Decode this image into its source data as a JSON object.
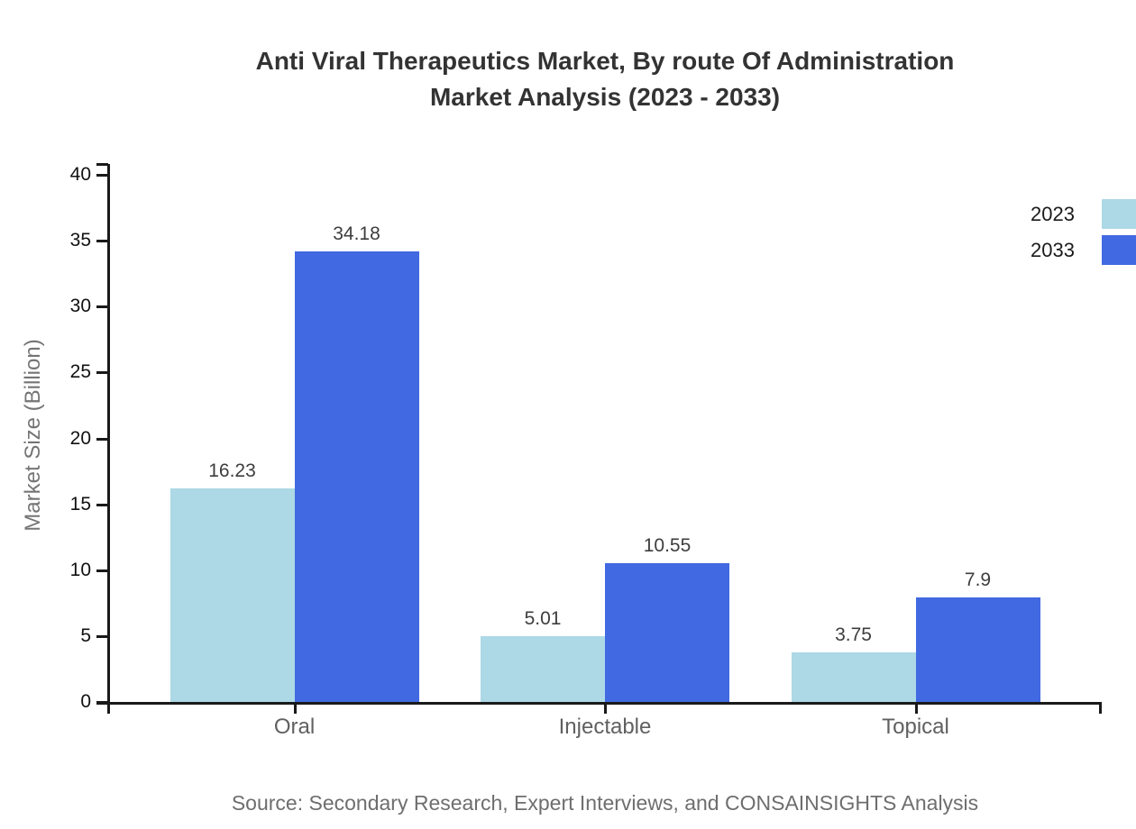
{
  "chart_data": {
    "type": "bar",
    "title": "Anti Viral Therapeutics Market, By route Of Administration\nMarket Analysis (2023 - 2033)",
    "categories": [
      "Oral",
      "Injectable",
      "Topical"
    ],
    "series": [
      {
        "name": "2023",
        "color": "#ADD8E6",
        "values": [
          16.23,
          5.01,
          3.75
        ]
      },
      {
        "name": "2033",
        "color": "#4169E1",
        "values": [
          34.18,
          10.55,
          7.9
        ]
      }
    ],
    "xlabel": "",
    "ylabel": "Market Size (Billion)",
    "ylim": [
      0,
      40
    ],
    "yticks": [
      0,
      5,
      10,
      15,
      20,
      25,
      30,
      35,
      40
    ],
    "grid": false,
    "legend_position": "top-right",
    "source": "Source: Secondary Research, Expert Interviews, and CONSAINSIGHTS Analysis"
  }
}
